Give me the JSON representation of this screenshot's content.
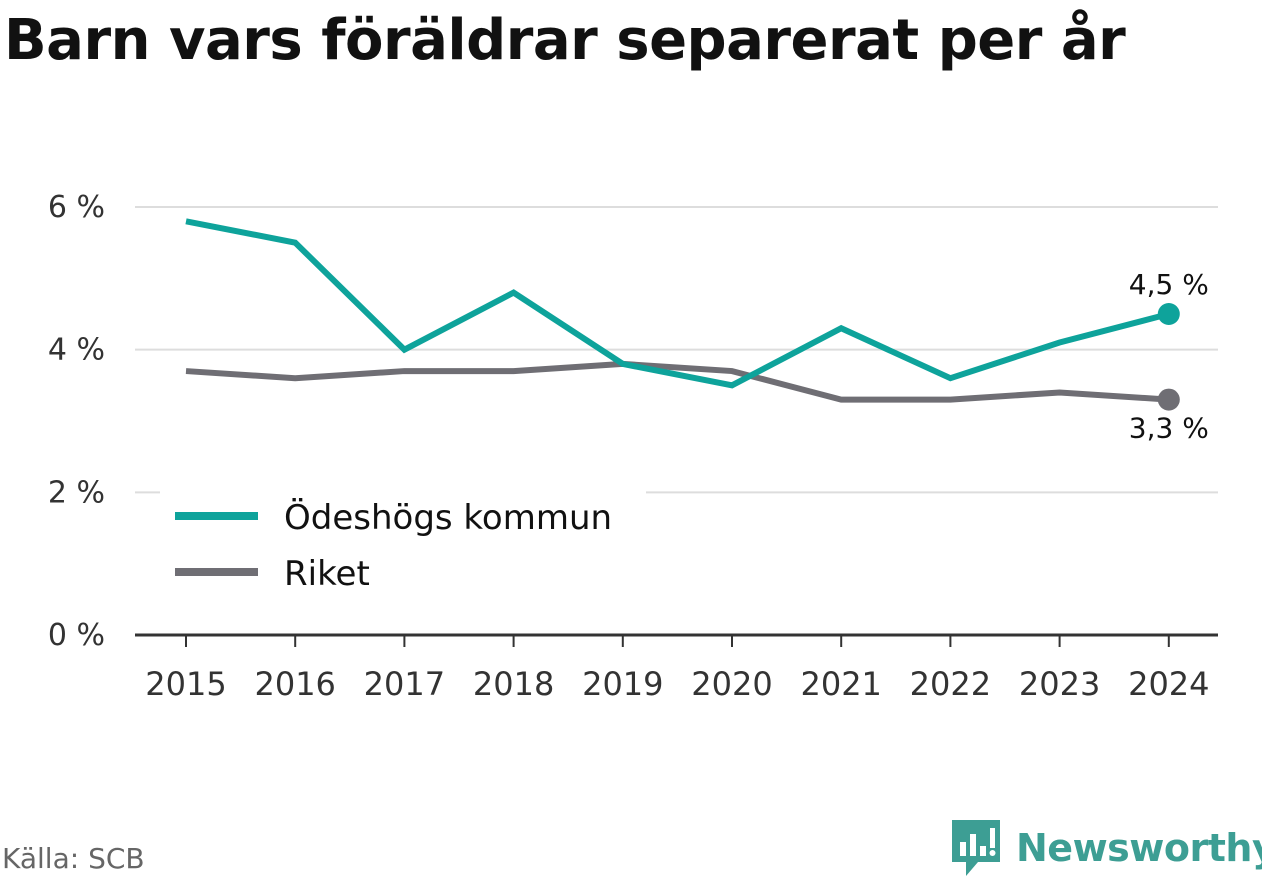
{
  "title": "Barn vars föräldrar separerat per år",
  "source": "Källa: SCB",
  "brand": {
    "name": "Newsworthy",
    "icon": "bar-chart-speech-bubble-icon",
    "color": "#3d9e94"
  },
  "chart_data": {
    "type": "line",
    "title": "Barn vars föräldrar separerat per år",
    "xlabel": "",
    "ylabel": "",
    "x": [
      "2015",
      "2016",
      "2017",
      "2018",
      "2019",
      "2020",
      "2021",
      "2022",
      "2023",
      "2024"
    ],
    "ylim": [
      0,
      6
    ],
    "yticks": [
      {
        "value": 0,
        "label": "0 %"
      },
      {
        "value": 2,
        "label": "2 %"
      },
      {
        "value": 4,
        "label": "4 %"
      },
      {
        "value": 6,
        "label": "6 %"
      }
    ],
    "grid": true,
    "legend_position": "bottom-left",
    "series": [
      {
        "name": "Ödeshögs kommun",
        "color": "#0ea39b",
        "values": [
          5.8,
          5.5,
          4.0,
          4.8,
          3.8,
          3.5,
          4.3,
          3.6,
          4.1,
          4.5
        ],
        "end_label": "4,5 %"
      },
      {
        "name": "Riket",
        "color": "#6f6e74",
        "values": [
          3.7,
          3.6,
          3.7,
          3.7,
          3.8,
          3.7,
          3.3,
          3.3,
          3.4,
          3.3
        ],
        "end_label": "3,3 %"
      }
    ]
  }
}
